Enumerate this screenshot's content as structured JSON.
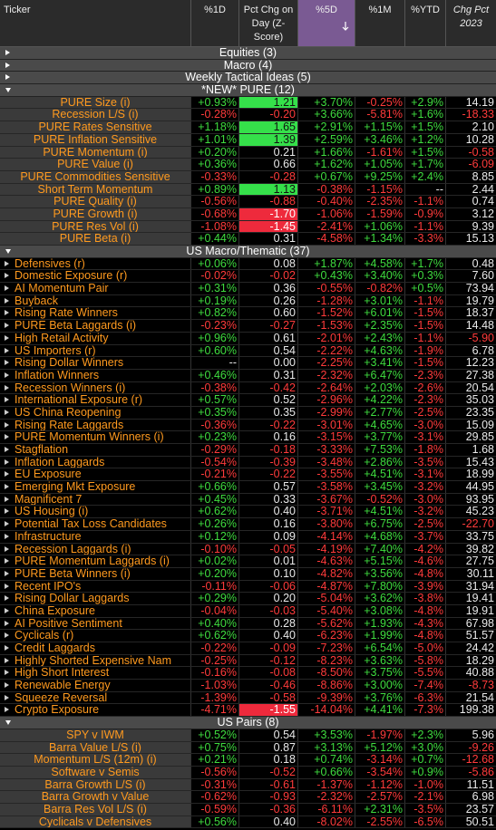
{
  "table": {
    "columns": [
      "Ticker",
      "%1D",
      "Pct Chg on Day (Z-Score)",
      "%5D",
      "%1M",
      "%YTD",
      "Chg Pct 2023"
    ],
    "collapsed_groups": [
      "Equities (3)",
      "Macro (4)",
      "Weekly Tactical Ideas (5)"
    ],
    "sections": [
      {
        "label": "*NEW* PURE (12)",
        "rows": [
          [
            "PURE Size (i)",
            "+0.93%",
            "1.21",
            "+3.70%",
            "-0.25%",
            "+2.9%",
            "14.19"
          ],
          [
            "Recession L/S (i)",
            "-0.28%",
            "-0.20",
            "+3.66%",
            "-5.81%",
            "+1.6%",
            "-18.33"
          ],
          [
            "PURE Rates Sensitive",
            "+1.18%",
            "1.65",
            "+2.91%",
            "+1.15%",
            "+1.5%",
            "2.10"
          ],
          [
            "PURE Inflation Sensitive",
            "+1.01%",
            "1.39",
            "+2.59%",
            "+3.46%",
            "+1.2%",
            "10.28"
          ],
          [
            "PURE Momentum (i)",
            "+0.20%",
            "0.21",
            "+1.66%",
            "-1.61%",
            "+1.5%",
            "-0.58"
          ],
          [
            "PURE Value (i)",
            "+0.36%",
            "0.66",
            "+1.62%",
            "+1.05%",
            "+1.7%",
            "-6.09"
          ],
          [
            "PURE Commodities Sensitive",
            "-0.33%",
            "-0.28",
            "+0.67%",
            "+9.25%",
            "+2.4%",
            "8.85"
          ],
          [
            "Short Term Momentum",
            "+0.89%",
            "1.13",
            "-0.38%",
            "-1.15%",
            "--",
            "2.44"
          ],
          [
            "PURE Quality (i)",
            "-0.56%",
            "-0.88",
            "-0.40%",
            "-2.35%",
            "-1.1%",
            "0.74"
          ],
          [
            "PURE Growth (i)",
            "-0.68%",
            "-1.70",
            "-1.06%",
            "-1.59%",
            "-0.9%",
            "3.12"
          ],
          [
            "PURE Res Vol (i)",
            "-1.08%",
            "-1.45",
            "-2.41%",
            "+1.06%",
            "-1.1%",
            "9.39"
          ],
          [
            "PURE Beta (i)",
            "+0.44%",
            "0.31",
            "-4.58%",
            "+1.34%",
            "-3.3%",
            "15.13"
          ]
        ]
      },
      {
        "label": "US Macro/Thematic (37)",
        "rows": [
          [
            "Defensives (r)",
            "+0.06%",
            "0.08",
            "+1.87%",
            "+4.58%",
            "+1.7%",
            "0.48"
          ],
          [
            "Domestic Exposure (r)",
            "-0.02%",
            "-0.02",
            "+0.43%",
            "+3.40%",
            "+0.3%",
            "7.60"
          ],
          [
            "AI Momentum Pair",
            "+0.31%",
            "0.36",
            "-0.55%",
            "-0.82%",
            "+0.5%",
            "73.94"
          ],
          [
            "Buyback",
            "+0.19%",
            "0.26",
            "-1.28%",
            "+3.01%",
            "-1.1%",
            "19.79"
          ],
          [
            "Rising Rate Winners",
            "+0.82%",
            "0.60",
            "-1.52%",
            "+6.01%",
            "-1.5%",
            "18.37"
          ],
          [
            "PURE Beta Laggards (i)",
            "-0.23%",
            "-0.27",
            "-1.53%",
            "+2.35%",
            "-1.5%",
            "14.48"
          ],
          [
            "High Retail Activity",
            "+0.96%",
            "0.61",
            "-2.01%",
            "+2.43%",
            "-1.1%",
            "-5.90"
          ],
          [
            "US Importers (r)",
            "+0.60%",
            "0.54",
            "-2.22%",
            "+4.63%",
            "-1.9%",
            "6.78"
          ],
          [
            "Rising Dollar Winners",
            "--",
            "0.00",
            "-2.25%",
            "+3.41%",
            "-1.5%",
            "12.23"
          ],
          [
            "Inflation Winners",
            "+0.46%",
            "0.31",
            "-2.32%",
            "+6.47%",
            "-2.3%",
            "27.38"
          ],
          [
            "Recession Winners (i)",
            "-0.38%",
            "-0.42",
            "-2.64%",
            "+2.03%",
            "-2.6%",
            "20.54"
          ],
          [
            "International Exposure (r)",
            "+0.57%",
            "0.52",
            "-2.96%",
            "+4.22%",
            "-2.3%",
            "35.03"
          ],
          [
            "US China Reopening",
            "+0.35%",
            "0.35",
            "-2.99%",
            "+2.77%",
            "-2.5%",
            "23.35"
          ],
          [
            "Rising Rate Laggards",
            "-0.36%",
            "-0.22",
            "-3.01%",
            "+4.65%",
            "-3.0%",
            "15.09"
          ],
          [
            "PURE Momentum Winners (i)",
            "+0.23%",
            "0.16",
            "-3.15%",
            "+3.77%",
            "-3.1%",
            "29.85"
          ],
          [
            "Stagflation",
            "-0.29%",
            "-0.18",
            "-3.33%",
            "+7.53%",
            "-1.8%",
            "1.68"
          ],
          [
            "Inflation Laggards",
            "-0.54%",
            "-0.39",
            "-3.48%",
            "+2.86%",
            "-3.5%",
            "15.43"
          ],
          [
            "EU Exposure",
            "-0.21%",
            "-0.22",
            "-3.55%",
            "+4.51%",
            "-3.1%",
            "18.99"
          ],
          [
            "Emerging Mkt Exposure",
            "+0.66%",
            "0.57",
            "-3.58%",
            "+3.45%",
            "-3.2%",
            "44.95"
          ],
          [
            "Magnificent 7",
            "+0.45%",
            "0.33",
            "-3.67%",
            "-0.52%",
            "-3.0%",
            "93.95"
          ],
          [
            "US Housing (i)",
            "+0.62%",
            "0.40",
            "-3.71%",
            "+4.51%",
            "-3.2%",
            "45.23"
          ],
          [
            "Potential Tax Loss Candidates",
            "+0.26%",
            "0.16",
            "-3.80%",
            "+6.75%",
            "-2.5%",
            "-22.70"
          ],
          [
            "Infrastructure",
            "+0.12%",
            "0.09",
            "-4.14%",
            "+4.68%",
            "-3.7%",
            "33.75"
          ],
          [
            "Recession Laggards (i)",
            "-0.10%",
            "-0.05",
            "-4.19%",
            "+7.40%",
            "-4.2%",
            "39.82"
          ],
          [
            "PURE Momentum Laggards (i)",
            "+0.02%",
            "0.01",
            "-4.63%",
            "+5.15%",
            "-4.6%",
            "27.75"
          ],
          [
            "PURE Beta Winners (i)",
            "+0.20%",
            "0.10",
            "-4.82%",
            "+3.56%",
            "-4.8%",
            "30.11"
          ],
          [
            "Recent IPO's",
            "-0.11%",
            "-0.06",
            "-4.87%",
            "+7.80%",
            "-3.9%",
            "31.94"
          ],
          [
            "Rising Dollar Laggards",
            "+0.29%",
            "0.20",
            "-5.04%",
            "+3.62%",
            "-3.8%",
            "19.41"
          ],
          [
            "China Exposure",
            "-0.04%",
            "-0.03",
            "-5.40%",
            "+3.08%",
            "-4.8%",
            "19.91"
          ],
          [
            "AI Positive Sentiment",
            "+0.40%",
            "0.28",
            "-5.62%",
            "+1.93%",
            "-4.3%",
            "67.98"
          ],
          [
            "Cyclicals (r)",
            "+0.62%",
            "0.40",
            "-6.23%",
            "+1.99%",
            "-4.8%",
            "51.57"
          ],
          [
            "Credit Laggards",
            "-0.22%",
            "-0.09",
            "-7.23%",
            "+6.54%",
            "-5.0%",
            "24.42"
          ],
          [
            "Highly Shorted Expensive Nam",
            "-0.25%",
            "-0.12",
            "-8.23%",
            "+3.63%",
            "-5.8%",
            "18.29"
          ],
          [
            "High Short Interest",
            "-0.16%",
            "-0.08",
            "-8.50%",
            "+3.75%",
            "-5.5%",
            "40.88"
          ],
          [
            "Renewable Energy",
            "-1.03%",
            "-0.46",
            "-8.86%",
            "+3.00%",
            "-7.4%",
            "-8.73"
          ],
          [
            "Squeeze Reversal",
            "-1.39%",
            "-0.58",
            "-9.39%",
            "+3.76%",
            "-6.3%",
            "21.54"
          ],
          [
            "Crypto Exposure",
            "-4.71%",
            "-1.55",
            "-14.04%",
            "+4.41%",
            "-7.3%",
            "199.38"
          ]
        ]
      },
      {
        "label": "US Pairs (8)",
        "rows": [
          [
            "SPY v IWM",
            "+0.52%",
            "0.54",
            "+3.53%",
            "-1.97%",
            "+2.3%",
            "5.96"
          ],
          [
            "Barra Value L/S (i)",
            "+0.75%",
            "0.87",
            "+3.13%",
            "+5.12%",
            "+3.0%",
            "-9.26"
          ],
          [
            "Momentum L/S (12m) (i)",
            "+0.21%",
            "0.18",
            "+0.74%",
            "-3.14%",
            "+0.7%",
            "-12.68"
          ],
          [
            "Software v Semis",
            "-0.56%",
            "-0.52",
            "+0.66%",
            "-3.54%",
            "+0.9%",
            "-5.86"
          ],
          [
            "Barra Growth L/S (i)",
            "-0.31%",
            "-0.61",
            "-1.37%",
            "-1.12%",
            "-1.0%",
            "11.51"
          ],
          [
            "Barra Growth v Value",
            "-0.62%",
            "-0.93",
            "-2.32%",
            "-2.57%",
            "-2.1%",
            "6.98"
          ],
          [
            "Barra Res Vol L/S (i)",
            "-0.59%",
            "-0.36",
            "-6.11%",
            "+2.31%",
            "-3.5%",
            "23.57"
          ],
          [
            "Cyclicals v Defensives",
            "+0.56%",
            "0.40",
            "-8.02%",
            "-2.55%",
            "-6.5%",
            "50.51"
          ]
        ]
      }
    ]
  }
}
